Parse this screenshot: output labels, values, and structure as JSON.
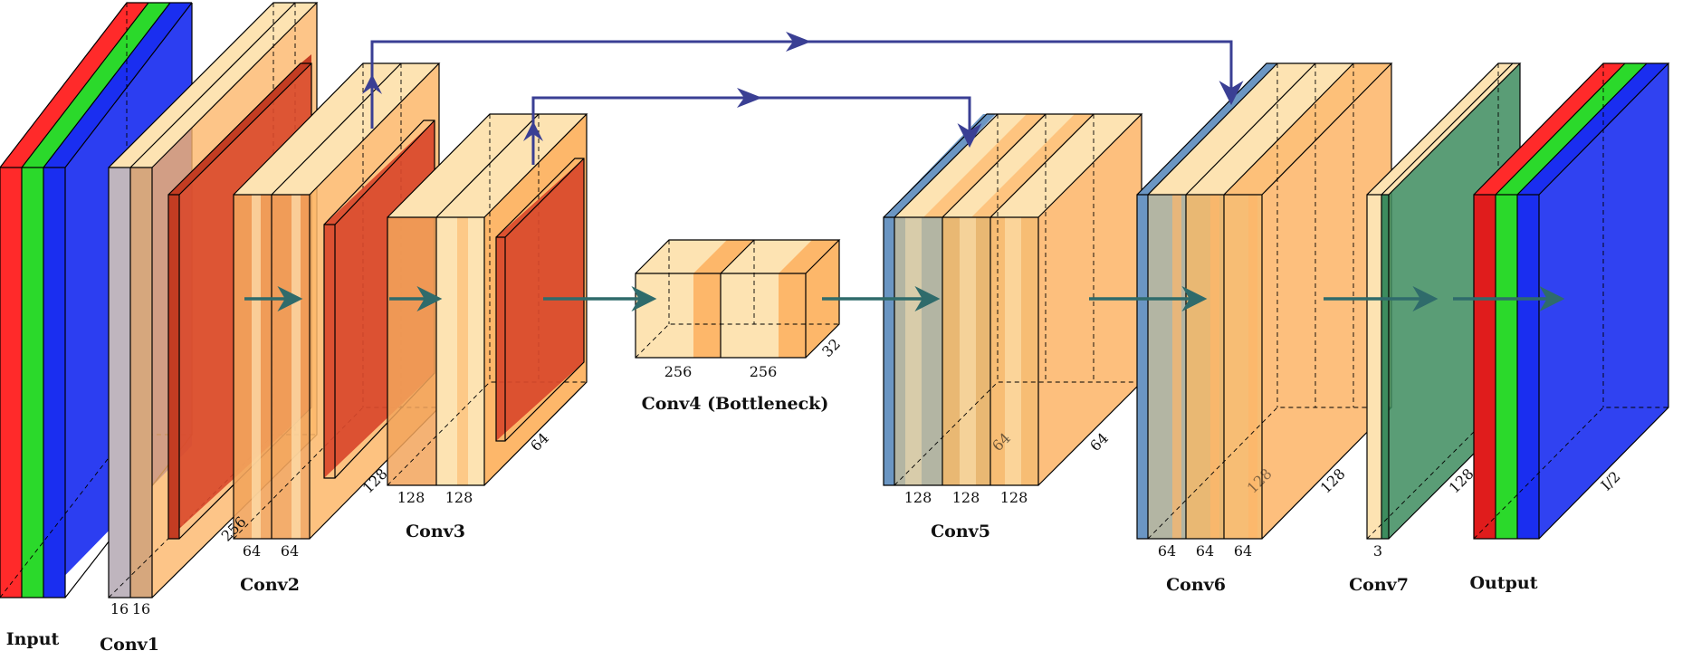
{
  "colors": {
    "red": "#ff2a2a",
    "green": "#2bd92b",
    "blue": "#1a2ef0",
    "conv_light": "#fde3b2",
    "conv_orange": "#fdb76a",
    "relu": "#d9482b",
    "unpool": "#6b96c3",
    "output_green": "#3d8c5e",
    "skip_arrow": "#3a3f94",
    "flow_arrow": "#2f6b6b"
  },
  "blocks": {
    "input": {
      "label": "Input"
    },
    "conv1": {
      "label": "Conv1",
      "dims": [
        "16",
        "16"
      ]
    },
    "conv2": {
      "label": "Conv2",
      "dims": [
        "64",
        "64"
      ],
      "side": "256"
    },
    "conv3": {
      "label": "Conv3",
      "dims": [
        "128",
        "128"
      ],
      "side": "128"
    },
    "pool3": {
      "side": "64"
    },
    "conv4": {
      "label": "Conv4 (Bottleneck)",
      "dims": [
        "256",
        "256"
      ],
      "side": "32"
    },
    "conv5": {
      "label": "Conv5",
      "dims": [
        "128",
        "128",
        "128"
      ],
      "side": "64",
      "side2": "64"
    },
    "conv6": {
      "label": "Conv6",
      "dims": [
        "64",
        "64",
        "64"
      ],
      "side": "128",
      "side2": "128"
    },
    "conv7": {
      "label": "Conv7",
      "dims": [
        "3"
      ],
      "side": "128"
    },
    "output": {
      "label": "Output",
      "side": "I/2"
    }
  }
}
